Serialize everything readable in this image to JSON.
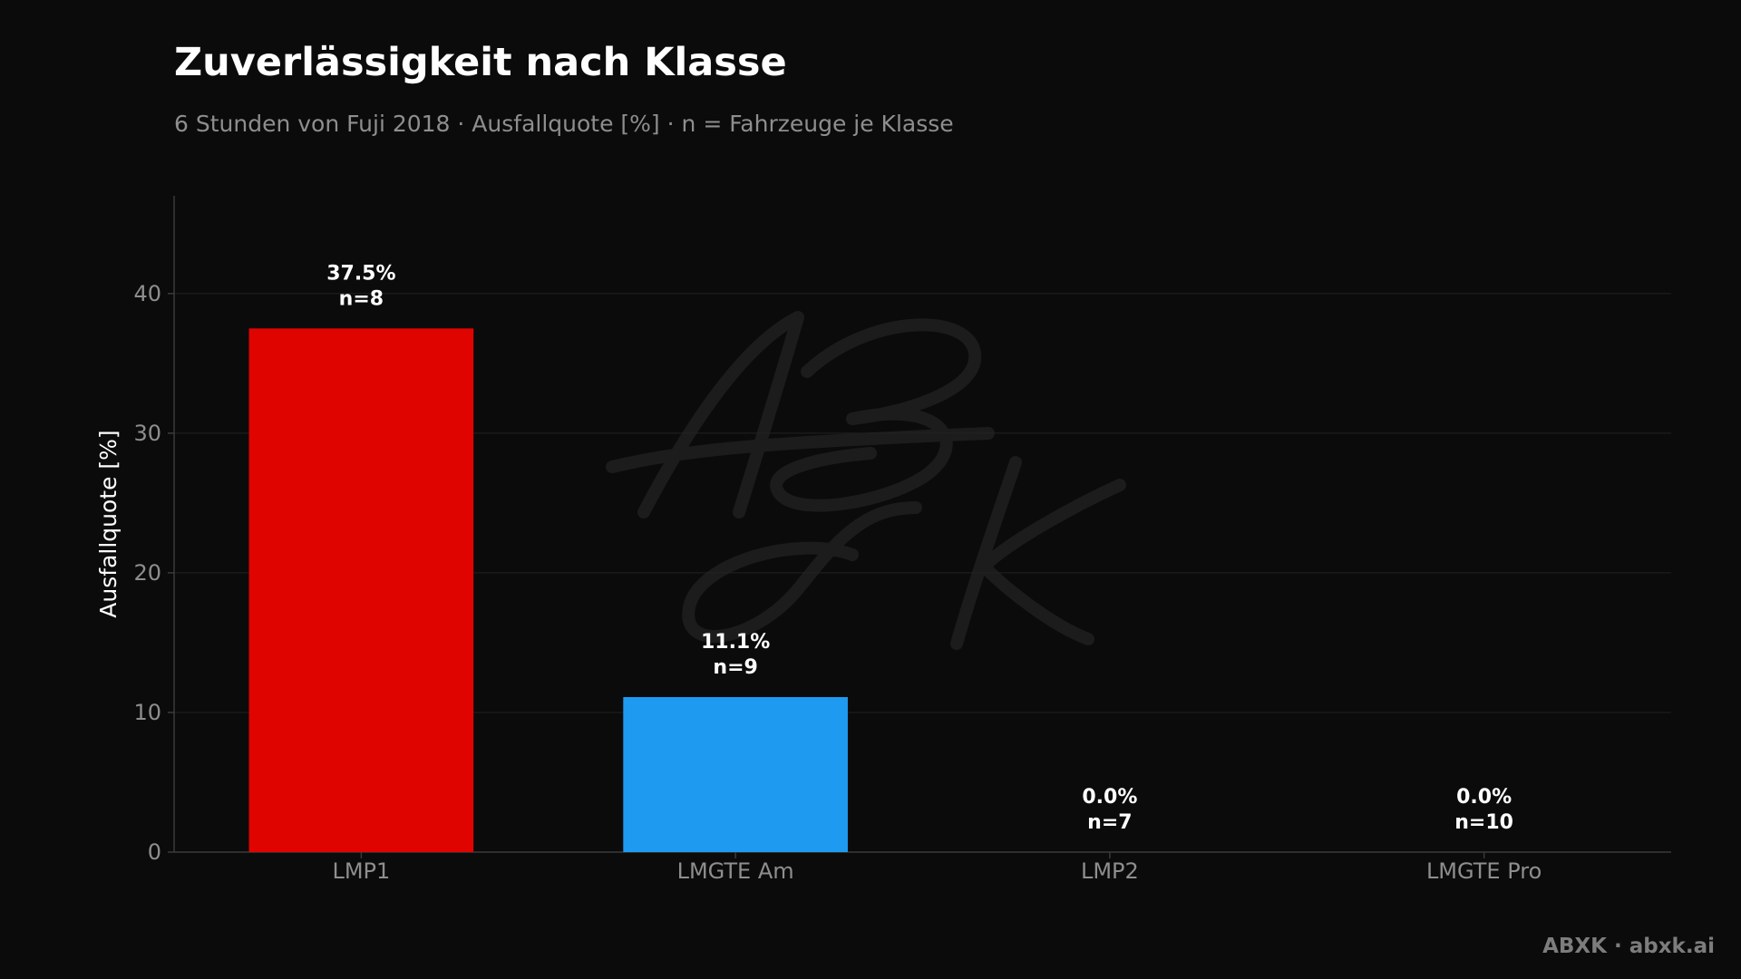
{
  "chart_data": {
    "type": "bar",
    "title": "Zuverlässigkeit nach Klasse",
    "subtitle": "6 Stunden von Fuji 2018 · Ausfallquote [%] · n = Fahrzeuge je Klasse",
    "xlabel": "",
    "ylabel": "Ausfallquote [%]",
    "categories": [
      "LMP1",
      "LMGTE Am",
      "LMP2",
      "LMGTE Pro"
    ],
    "values": [
      37.5,
      11.1,
      0.0,
      0.0
    ],
    "counts": [
      "n=8",
      "n=9",
      "n=7",
      "n=10"
    ],
    "value_labels": [
      "37.5%",
      "11.1%",
      "0.0%",
      "0.0%"
    ],
    "colors": [
      "#e00400",
      "#1e9bf0",
      "#6b6b6b",
      "#6b6b6b"
    ],
    "ylim": [
      0,
      47
    ],
    "yticks": [
      0,
      10,
      20,
      30,
      40
    ],
    "grid": true,
    "legend": "none"
  },
  "watermark": "ABXK",
  "brand": "ABXK · abxk.ai",
  "theme": {
    "background": "#0b0b0c",
    "grid": "#222222",
    "axis": "#3a3a3a",
    "tick_text": "#8e8e8e",
    "label_text": "#ffffff"
  }
}
